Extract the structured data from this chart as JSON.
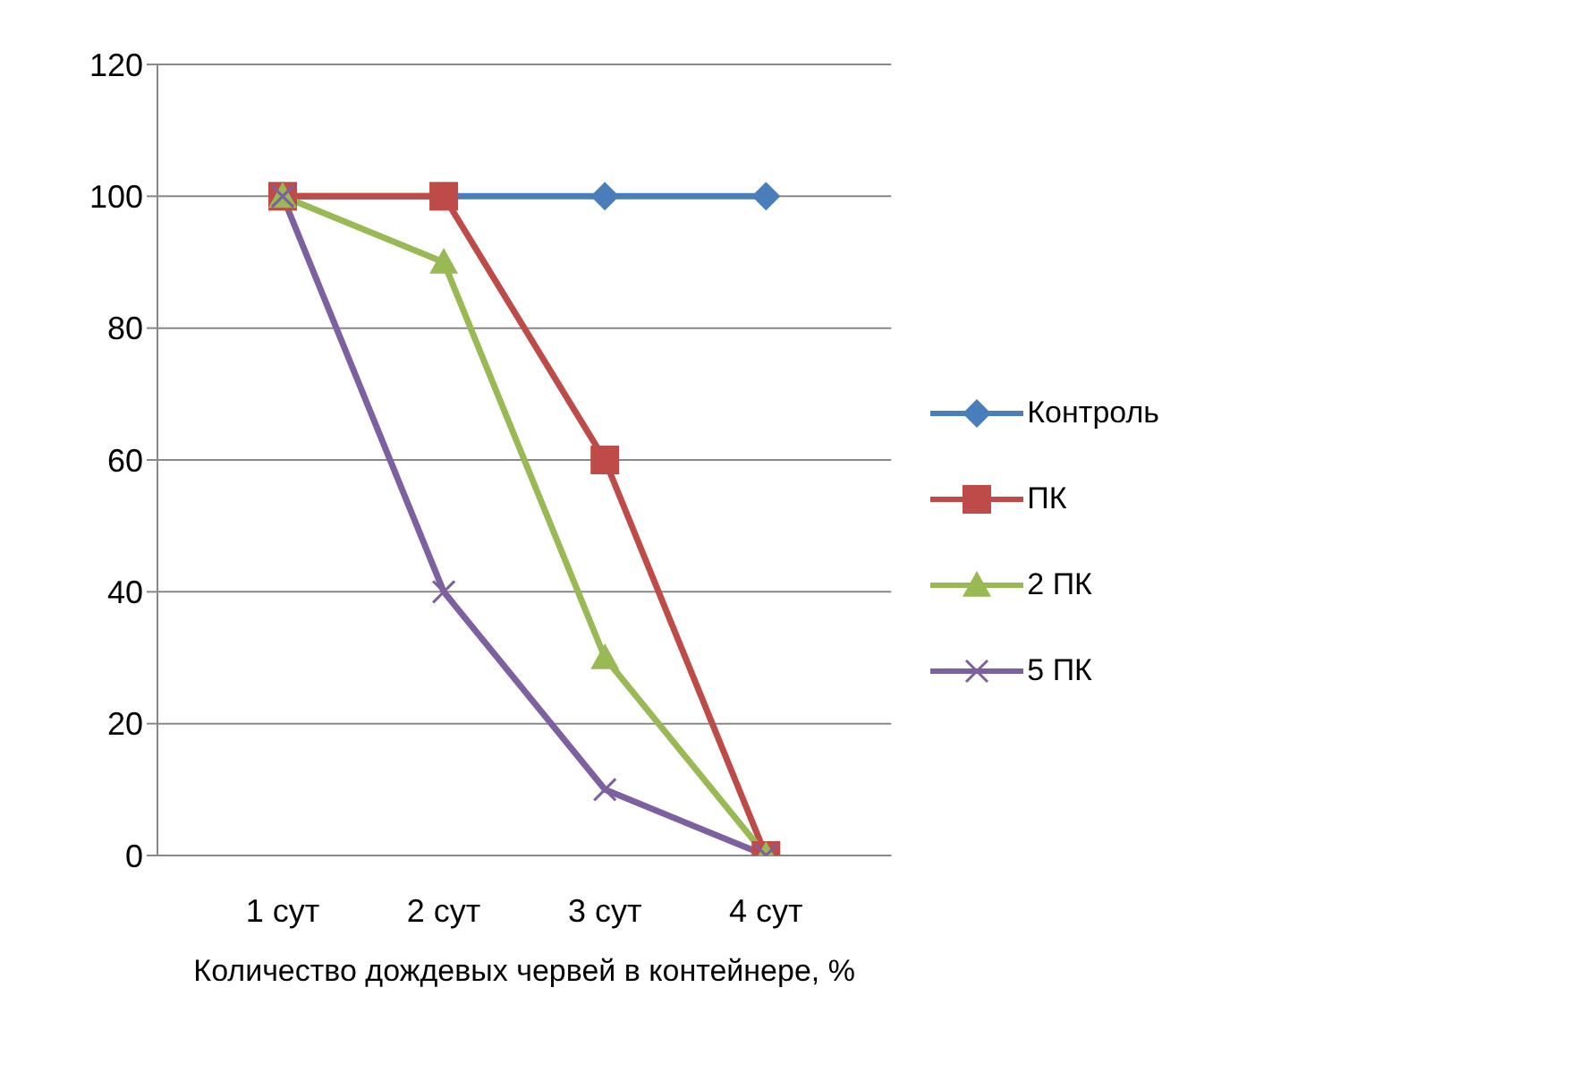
{
  "chart_data": {
    "type": "line",
    "xlabel": "Количество дождевых червей в контейнере, %",
    "categories": [
      "1 сут",
      "2 сут",
      "3 сут",
      "4 сут"
    ],
    "series": [
      {
        "name": "Контроль",
        "color": "#4a7ebb",
        "marker": "diamond",
        "values": [
          100,
          100,
          100,
          100
        ]
      },
      {
        "name": "ПК",
        "color": "#be4b48",
        "marker": "square",
        "values": [
          100,
          100,
          60,
          0
        ]
      },
      {
        "name": "2 ПК",
        "color": "#98b954",
        "marker": "triangle",
        "values": [
          100,
          90,
          30,
          0
        ]
      },
      {
        "name": "5 ПК",
        "color": "#7d60a0",
        "marker": "cross",
        "values": [
          100,
          40,
          10,
          0
        ]
      }
    ],
    "ylim": [
      0,
      120
    ],
    "yticks": [
      0,
      20,
      40,
      60,
      80,
      100,
      120
    ],
    "grid": "y",
    "legend": "right",
    "line_style": "solid"
  }
}
